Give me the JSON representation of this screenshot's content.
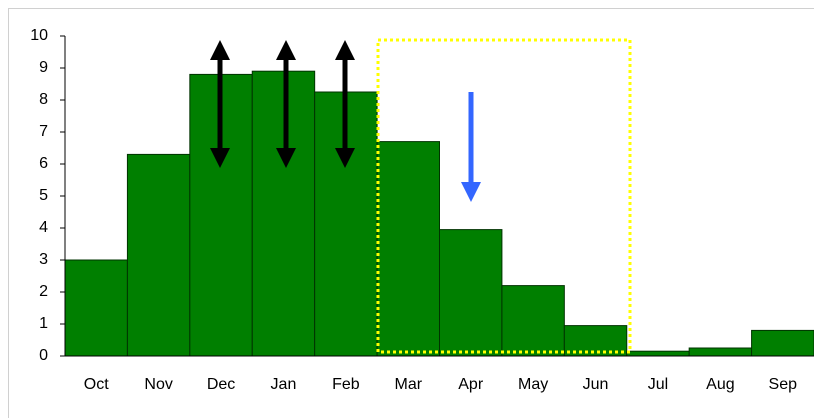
{
  "chart_data": {
    "type": "bar",
    "categories": [
      "Oct",
      "Nov",
      "Dec",
      "Jan",
      "Feb",
      "Mar",
      "Apr",
      "May",
      "Jun",
      "Jul",
      "Aug",
      "Sep"
    ],
    "values": [
      3.0,
      6.3,
      8.8,
      8.9,
      8.25,
      6.7,
      3.95,
      2.2,
      0.95,
      0.15,
      0.25,
      0.8
    ],
    "color": "#007f00",
    "ylim": [
      0,
      10
    ],
    "yticks": [
      0,
      1,
      2,
      3,
      4,
      5,
      6,
      7,
      8,
      9,
      10
    ],
    "grid": false
  }
}
